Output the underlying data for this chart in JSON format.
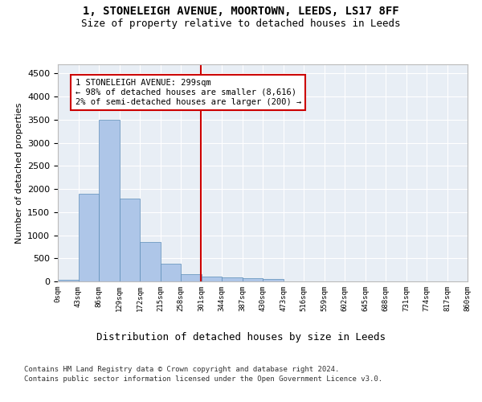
{
  "title_line1": "1, STONELEIGH AVENUE, MOORTOWN, LEEDS, LS17 8FF",
  "title_line2": "Size of property relative to detached houses in Leeds",
  "xlabel": "Distribution of detached houses by size in Leeds",
  "ylabel": "Number of detached properties",
  "footer_line1": "Contains HM Land Registry data © Crown copyright and database right 2024.",
  "footer_line2": "Contains public sector information licensed under the Open Government Licence v3.0.",
  "bin_labels": [
    "0sqm",
    "43sqm",
    "86sqm",
    "129sqm",
    "172sqm",
    "215sqm",
    "258sqm",
    "301sqm",
    "344sqm",
    "387sqm",
    "430sqm",
    "473sqm",
    "516sqm",
    "559sqm",
    "602sqm",
    "645sqm",
    "688sqm",
    "731sqm",
    "774sqm",
    "817sqm",
    "860sqm"
  ],
  "bar_values": [
    30,
    1900,
    3500,
    1800,
    850,
    380,
    160,
    100,
    90,
    70,
    50,
    0,
    0,
    0,
    0,
    0,
    0,
    0,
    0,
    0
  ],
  "bar_color": "#aec6e8",
  "bar_edge_color": "#5b8db8",
  "vline_x": 6.98,
  "vline_color": "#cc0000",
  "ylim": [
    0,
    4700
  ],
  "yticks": [
    0,
    500,
    1000,
    1500,
    2000,
    2500,
    3000,
    3500,
    4000,
    4500
  ],
  "annotation_text": "1 STONELEIGH AVENUE: 299sqm\n← 98% of detached houses are smaller (8,616)\n2% of semi-detached houses are larger (200) →",
  "annotation_box_color": "#ffffff",
  "annotation_box_edge": "#cc0000",
  "bg_color": "#e8eef5"
}
